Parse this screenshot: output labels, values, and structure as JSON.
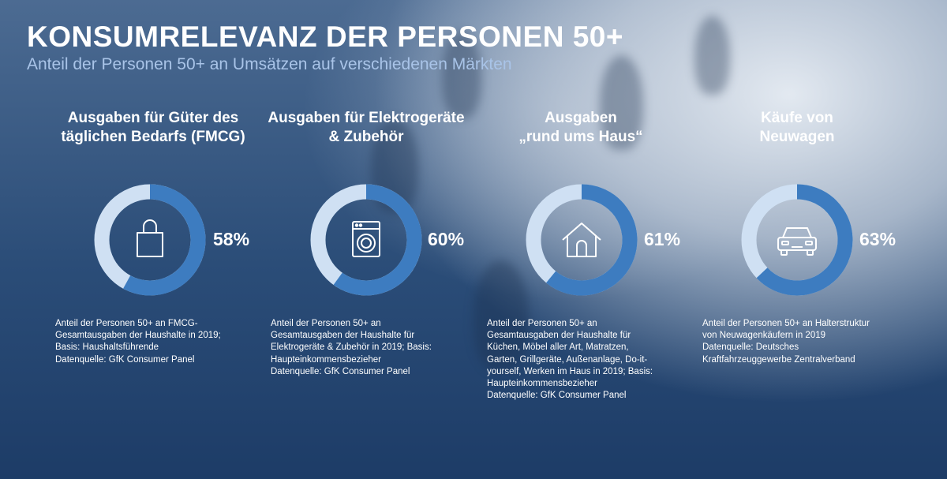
{
  "header": {
    "title": "KONSUMRELEVANZ DER PERSONEN 50+",
    "subtitle": "Anteil der Personen 50+ an Umsätzen auf verschiedenen Märkten"
  },
  "colors": {
    "ring_fill": "#3d7cc0",
    "ring_rest": "#cfe0f3",
    "icon": "#ffffff"
  },
  "chart_data": [
    {
      "type": "pie",
      "title_lines": [
        "Ausgaben für Güter des",
        "täglichen Bedarfs (FMCG)"
      ],
      "value": 58,
      "label": "58%",
      "icon": "shopping-bag-icon",
      "note_lines": [
        "Anteil der Personen 50+ an FMCG-",
        "Gesamtausgaben der Haushalte in 2019;",
        "Basis: Haushaltsführende",
        "Datenquelle: GfK Consumer Panel"
      ]
    },
    {
      "type": "pie",
      "title_lines": [
        "Ausgaben für Elektrogeräte",
        "& Zubehör"
      ],
      "value": 60,
      "label": "60%",
      "icon": "washing-machine-icon",
      "note_lines": [
        "Anteil der Personen 50+ an",
        "Gesamtausgaben der Haushalte für",
        "Elektrogeräte & Zubehör in 2019; Basis:",
        "Haupteinkommensbezieher",
        "Datenquelle: GfK Consumer Panel"
      ]
    },
    {
      "type": "pie",
      "title_lines": [
        "Ausgaben",
        "„rund ums Haus“"
      ],
      "value": 61,
      "label": "61%",
      "icon": "house-icon",
      "note_lines": [
        "Anteil der Personen 50+ an",
        "Gesamtausgaben der Haushalte für",
        "Küchen, Möbel aller Art, Matratzen,",
        "Garten, Grillgeräte, Außenanlage, Do-it-",
        "yourself, Werken im Haus in 2019; Basis:",
        "Haupteinkommensbezieher",
        "Datenquelle: GfK Consumer Panel"
      ]
    },
    {
      "type": "pie",
      "title_lines": [
        "Käufe von",
        "Neuwagen"
      ],
      "value": 63,
      "label": "63%",
      "icon": "car-icon",
      "note_lines": [
        "Anteil der Personen 50+ an Halterstruktur",
        "von Neuwagenkäufern in 2019",
        "Datenquelle: Deutsches",
        "Kraftfahrzeuggewerbe Zentralverband"
      ]
    }
  ]
}
